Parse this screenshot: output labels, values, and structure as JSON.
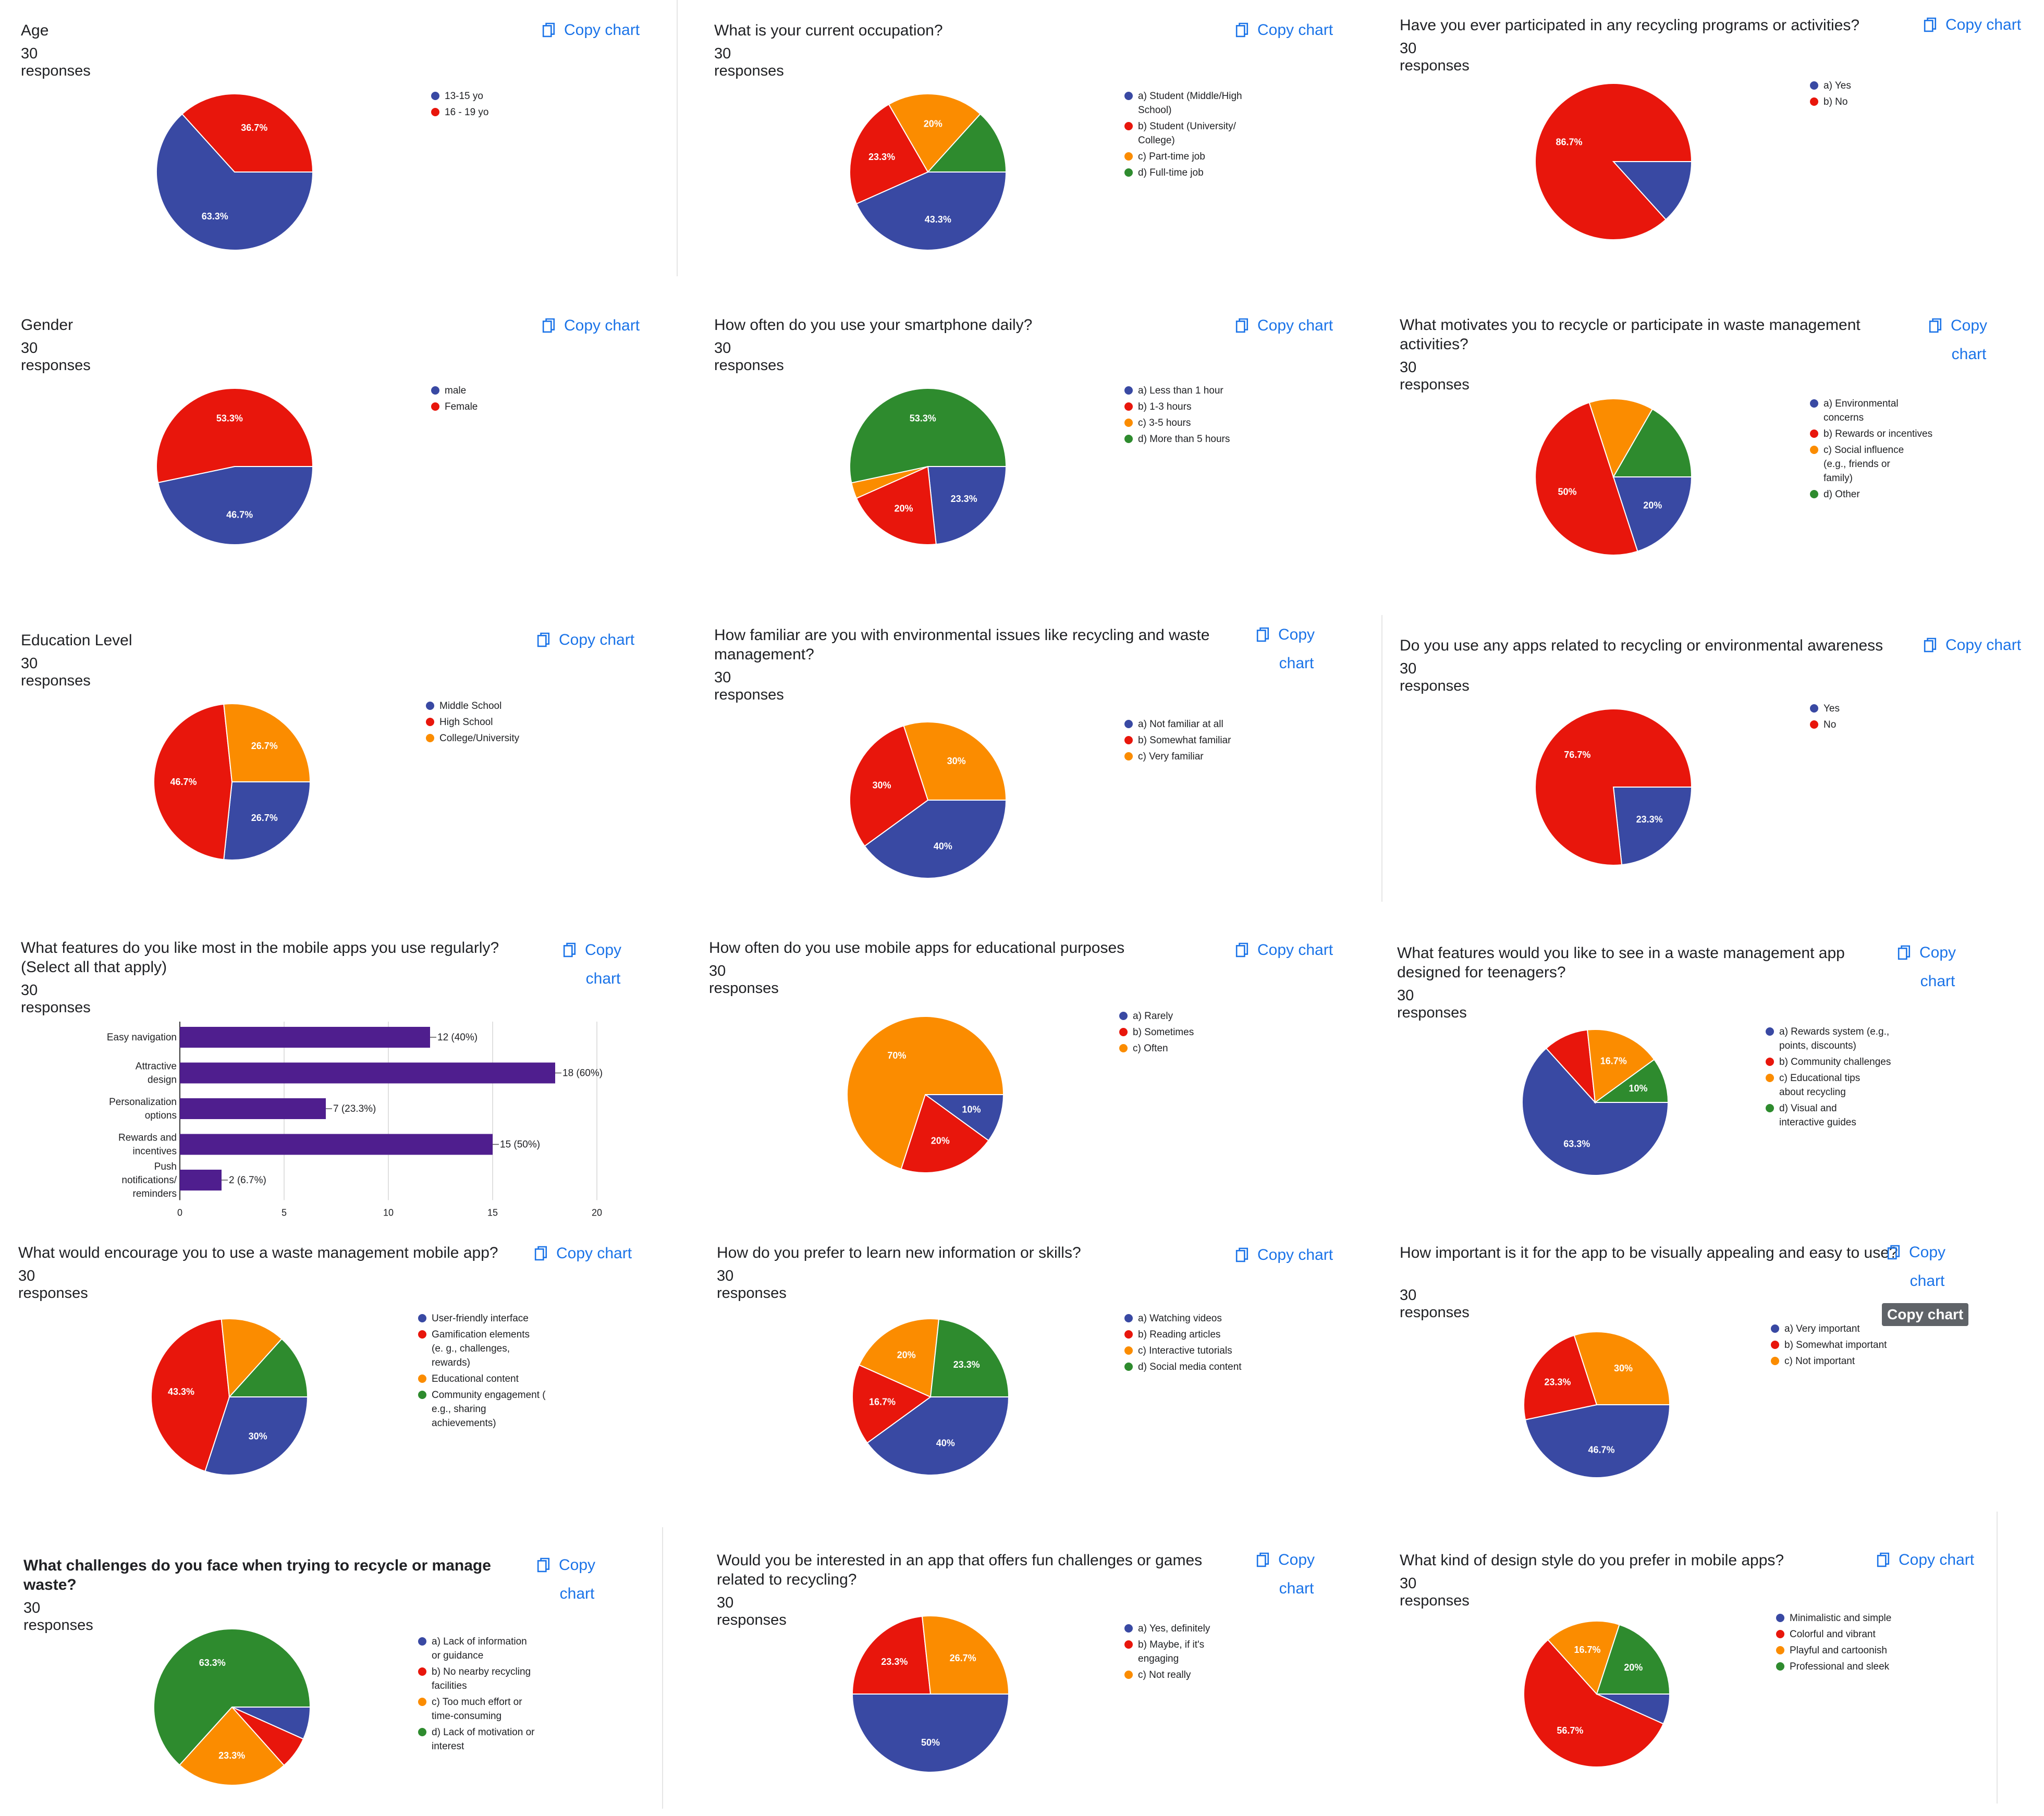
{
  "copy_label": "Copy chart",
  "tooltip": "Copy chart",
  "colors": {
    "blue": "#3949a3",
    "red": "#e8160c",
    "orange": "#fb8c00",
    "green": "#2e8b2e",
    "purple": "#4f1e8e",
    "link": "#1a73e8"
  },
  "icons": {
    "copy": "copy-icon"
  },
  "cards": [
    {
      "title": "Age",
      "responses": "30 responses",
      "chart_data": {
        "type": "pie",
        "labels": [
          "13-15 yo",
          "16 - 19 yo"
        ],
        "values": [
          63.3,
          36.7
        ],
        "slice_labels": [
          "63.3%",
          "36.7%"
        ],
        "colors": [
          "#3949a3",
          "#e8160c"
        ],
        "legend": "right"
      }
    },
    {
      "title": "What is your current occupation?",
      "responses": "30 responses",
      "chart_data": {
        "type": "pie",
        "labels": [
          "a) Student (Middle/High School)",
          "b) Student (University/ College)",
          "c) Part-time job",
          "d) Full-time job"
        ],
        "values": [
          43.3,
          23.3,
          20,
          13.3
        ],
        "slice_labels": [
          "43.3%",
          "23.3%",
          "20%",
          ""
        ],
        "colors": [
          "#3949a3",
          "#e8160c",
          "#fb8c00",
          "#2e8b2e"
        ],
        "legend": "right"
      }
    },
    {
      "title": "Have you ever participated in any recycling programs or activities?",
      "responses": "30 responses",
      "chart_data": {
        "type": "pie",
        "labels": [
          "a) Yes",
          "b) No"
        ],
        "values": [
          13.3,
          86.7
        ],
        "slice_labels": [
          "",
          "86.7%"
        ],
        "colors": [
          "#3949a3",
          "#e8160c"
        ],
        "legend": "right"
      }
    },
    {
      "title": "Gender",
      "responses": "30 responses",
      "chart_data": {
        "type": "pie",
        "labels": [
          "male",
          "Female"
        ],
        "values": [
          46.7,
          53.3
        ],
        "slice_labels": [
          "46.7%",
          "53.3%"
        ],
        "colors": [
          "#3949a3",
          "#e8160c"
        ],
        "legend": "right"
      }
    },
    {
      "title": "How often do you use your smartphone daily?",
      "responses": "30 responses",
      "chart_data": {
        "type": "pie",
        "labels": [
          "a) Less than 1 hour",
          "b) 1-3 hours",
          "c) 3-5 hours",
          "d) More than 5 hours"
        ],
        "values": [
          23.3,
          20,
          3.3,
          53.3
        ],
        "slice_labels": [
          "23.3%",
          "20%",
          "",
          "53.3%"
        ],
        "colors": [
          "#3949a3",
          "#e8160c",
          "#fb8c00",
          "#2e8b2e"
        ],
        "legend": "right"
      }
    },
    {
      "title": "What motivates you to recycle or participate in waste management activities?",
      "responses": "30 responses",
      "chart_data": {
        "type": "pie",
        "labels": [
          "a) Environmental concerns",
          "b) Rewards or incentives",
          "c) Social influence (e.g., friends or family)",
          "d) Other"
        ],
        "values": [
          20,
          50,
          13.3,
          16.7
        ],
        "slice_labels": [
          "20%",
          "50%",
          "",
          ""
        ],
        "colors": [
          "#3949a3",
          "#e8160c",
          "#fb8c00",
          "#2e8b2e"
        ],
        "legend": "right"
      }
    },
    {
      "title": "Education Level",
      "responses": "30 responses",
      "chart_data": {
        "type": "pie",
        "labels": [
          "Middle School",
          "High School",
          "College/University"
        ],
        "values": [
          26.7,
          46.7,
          26.7
        ],
        "slice_labels": [
          "26.7%",
          "46.7%",
          "26.7%"
        ],
        "colors": [
          "#3949a3",
          "#e8160c",
          "#fb8c00"
        ],
        "legend": "right"
      }
    },
    {
      "title": "How familiar are you with environmental issues like recycling and waste management?",
      "responses": "30 responses",
      "chart_data": {
        "type": "pie",
        "labels": [
          "a) Not familiar at all",
          "b) Somewhat familiar",
          "c) Very familiar"
        ],
        "values": [
          40,
          30,
          30
        ],
        "slice_labels": [
          "40%",
          "30%",
          "30%"
        ],
        "colors": [
          "#3949a3",
          "#e8160c",
          "#fb8c00"
        ],
        "legend": "right"
      }
    },
    {
      "title": "Do you use any apps related to recycling or environmental awareness",
      "responses": "30 responses",
      "chart_data": {
        "type": "pie",
        "labels": [
          "Yes",
          "No"
        ],
        "values": [
          23.3,
          76.7
        ],
        "slice_labels": [
          "23.3%",
          "76.7%"
        ],
        "colors": [
          "#3949a3",
          "#e8160c"
        ],
        "legend": "right"
      }
    },
    {
      "title": "What features do you like most in the mobile apps you use regularly? (Select all that apply)",
      "responses": "30 responses",
      "chart_data": {
        "type": "bar",
        "orientation": "horizontal",
        "categories": [
          "Easy navigation",
          "Attractive design",
          "Personalization options",
          "Rewards and incentives",
          "Push notifications/ reminders"
        ],
        "values": [
          12,
          18,
          7,
          15,
          2
        ],
        "value_labels": [
          "12 (40%)",
          "18 (60%)",
          "7 (23.3%)",
          "15 (50%)",
          "2 (6.7%)"
        ],
        "xlim": [
          0,
          20
        ],
        "xticks": [
          0,
          5,
          10,
          15,
          20
        ],
        "color": "#4f1e8e",
        "grid": true
      }
    },
    {
      "title": "How often do you use mobile apps for educational purposes",
      "responses": "30 responses",
      "chart_data": {
        "type": "pie",
        "labels": [
          "a) Rarely",
          "b) Sometimes",
          "c) Often"
        ],
        "values": [
          10,
          20,
          70
        ],
        "slice_labels": [
          "10%",
          "20%",
          "70%"
        ],
        "colors": [
          "#3949a3",
          "#e8160c",
          "#fb8c00"
        ],
        "legend": "right"
      }
    },
    {
      "title": "What features would you like to see in a waste management app designed for teenagers?",
      "responses": "30 responses",
      "chart_data": {
        "type": "pie",
        "labels": [
          "a) Rewards system (e.g., points, discounts)",
          "b) Community challenges",
          "c) Educational tips about recycling",
          "d) Visual and interactive guides"
        ],
        "values": [
          63.3,
          10,
          16.7,
          10
        ],
        "slice_labels": [
          "63.3%",
          "",
          "16.7%",
          "10%"
        ],
        "colors": [
          "#3949a3",
          "#e8160c",
          "#fb8c00",
          "#2e8b2e"
        ],
        "legend": "right"
      }
    },
    {
      "title": "What would encourage you to use a waste management mobile app?",
      "responses": "30 responses",
      "chart_data": {
        "type": "pie",
        "labels": [
          "User-friendly interface",
          "Gamification elements (e. g., challenges, rewards)",
          "Educational content",
          "Community engagement ( e.g., sharing achievements)"
        ],
        "values": [
          30,
          43.3,
          13.3,
          13.3
        ],
        "slice_labels": [
          "30%",
          "43.3%",
          "",
          ""
        ],
        "colors": [
          "#3949a3",
          "#e8160c",
          "#fb8c00",
          "#2e8b2e"
        ],
        "legend": "right"
      }
    },
    {
      "title": "How do you prefer to learn new information or skills?",
      "responses": "30 responses",
      "chart_data": {
        "type": "pie",
        "labels": [
          "a) Watching videos",
          "b) Reading articles",
          "c) Interactive tutorials",
          "d) Social media content"
        ],
        "values": [
          40,
          16.7,
          20,
          23.3
        ],
        "slice_labels": [
          "40%",
          "16.7%",
          "20%",
          "23.3%"
        ],
        "colors": [
          "#3949a3",
          "#e8160c",
          "#fb8c00",
          "#2e8b2e"
        ],
        "legend": "right"
      }
    },
    {
      "title": "How important is it for the app to be visually appealing and easy to use?",
      "responses": "30 responses",
      "chart_data": {
        "type": "pie",
        "labels": [
          "a) Very important",
          "b) Somewhat important",
          "c) Not important"
        ],
        "values": [
          46.7,
          23.3,
          30
        ],
        "slice_labels": [
          "46.7%",
          "23.3%",
          "30%"
        ],
        "colors": [
          "#3949a3",
          "#e8160c",
          "#fb8c00"
        ],
        "legend": "right"
      }
    },
    {
      "title": "What challenges do you face when trying to recycle or manage waste?",
      "responses": "30 responses",
      "chart_data": {
        "type": "pie",
        "labels": [
          "a) Lack of information or guidance",
          "b) No nearby recycling facilities",
          "c) Too much effort or time-consuming",
          "d) Lack of motivation or interest"
        ],
        "values": [
          6.7,
          6.7,
          23.3,
          63.3
        ],
        "slice_labels": [
          "",
          "",
          "23.3%",
          "63.3%"
        ],
        "colors": [
          "#3949a3",
          "#e8160c",
          "#fb8c00",
          "#2e8b2e"
        ],
        "legend": "right"
      }
    },
    {
      "title": "Would you be interested in an app that offers fun challenges or games related to recycling?",
      "responses": "30 responses",
      "chart_data": {
        "type": "pie",
        "labels": [
          "a) Yes, definitely",
          "b) Maybe, if it's engaging",
          "c) Not really"
        ],
        "values": [
          50,
          23.3,
          26.7
        ],
        "slice_labels": [
          "50%",
          "23.3%",
          "26.7%"
        ],
        "colors": [
          "#3949a3",
          "#e8160c",
          "#fb8c00"
        ],
        "legend": "right"
      }
    },
    {
      "title": "What kind of design style do you prefer in mobile apps?",
      "responses": "30 responses",
      "chart_data": {
        "type": "pie",
        "labels": [
          "Minimalistic and simple",
          "Colorful and vibrant",
          "Playful and cartoonish",
          "Professional and sleek"
        ],
        "values": [
          6.7,
          56.7,
          16.7,
          20
        ],
        "slice_labels": [
          "",
          "56.7%",
          "16.7%",
          "20%"
        ],
        "colors": [
          "#3949a3",
          "#e8160c",
          "#fb8c00",
          "#2e8b2e"
        ],
        "legend": "right"
      }
    }
  ]
}
